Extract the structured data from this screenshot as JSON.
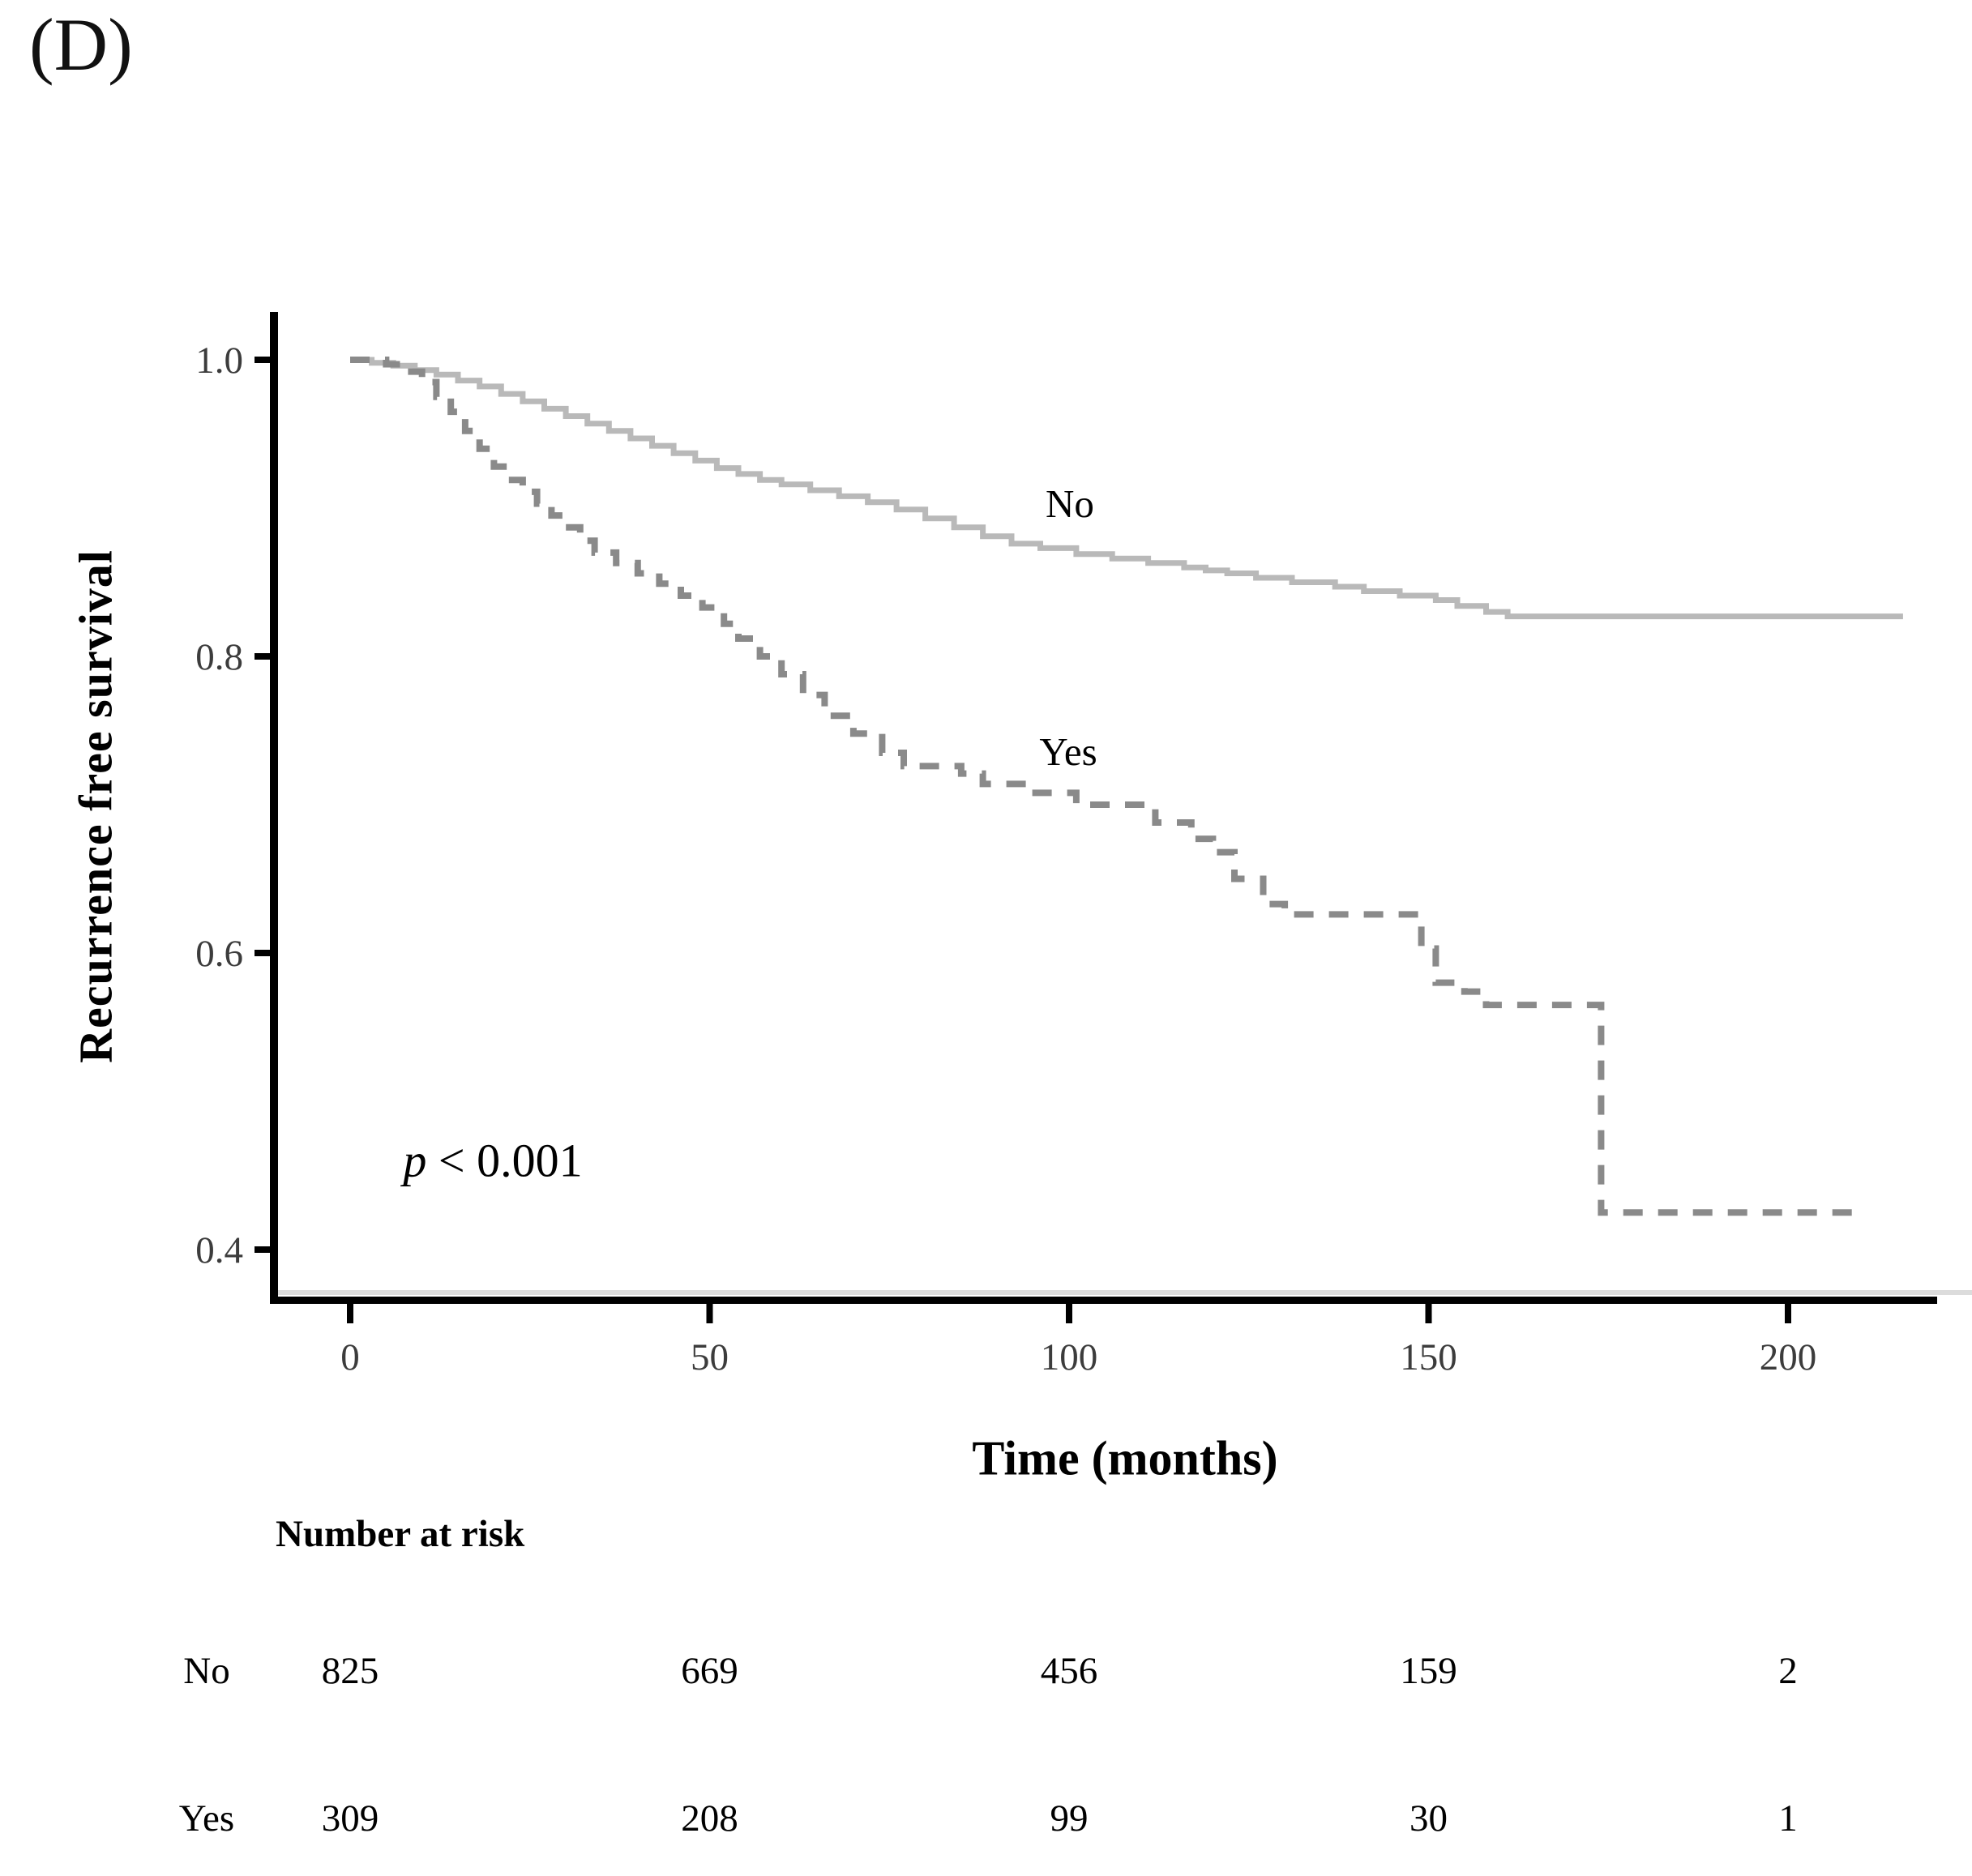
{
  "panel": {
    "label": "(D)"
  },
  "annotations": {
    "p_value_symbol": "p",
    "p_value_rest": " < 0.001"
  },
  "chart_data": {
    "type": "line",
    "subtype": "kaplan-meier-step",
    "title": "",
    "xlabel": "Time (months)",
    "ylabel": "Recurrence free survival",
    "x_ticks": [
      0,
      50,
      100,
      150,
      200
    ],
    "y_ticks": [
      1.0,
      0.8,
      0.6,
      0.4
    ],
    "y_tick_labels": [
      "1.0",
      "0.8",
      "0.6",
      "0.4"
    ],
    "xlim": [
      0,
      221
    ],
    "ylim": [
      0.36,
      1.03
    ],
    "grid": false,
    "legend_position": "inline-curve-labels",
    "p_value": "p < 0.001",
    "series": [
      {
        "name": "No",
        "line_style": "solid",
        "color": "#b9b9b9",
        "points": [
          [
            0,
            1.0
          ],
          [
            3,
            0.998
          ],
          [
            6,
            0.996
          ],
          [
            9,
            0.993
          ],
          [
            12,
            0.99
          ],
          [
            15,
            0.986
          ],
          [
            18,
            0.982
          ],
          [
            21,
            0.977
          ],
          [
            24,
            0.972
          ],
          [
            27,
            0.967
          ],
          [
            30,
            0.962
          ],
          [
            33,
            0.957
          ],
          [
            36,
            0.952
          ],
          [
            39,
            0.947
          ],
          [
            42,
            0.942
          ],
          [
            45,
            0.937
          ],
          [
            48,
            0.932
          ],
          [
            51,
            0.927
          ],
          [
            54,
            0.923
          ],
          [
            57,
            0.919
          ],
          [
            60,
            0.916
          ],
          [
            64,
            0.912
          ],
          [
            68,
            0.908
          ],
          [
            72,
            0.904
          ],
          [
            76,
            0.899
          ],
          [
            80,
            0.893
          ],
          [
            84,
            0.887
          ],
          [
            88,
            0.881
          ],
          [
            92,
            0.876
          ],
          [
            96,
            0.873
          ],
          [
            101,
            0.869
          ],
          [
            106,
            0.866
          ],
          [
            111,
            0.863
          ],
          [
            116,
            0.86
          ],
          [
            119,
            0.858
          ],
          [
            122,
            0.856
          ],
          [
            126,
            0.853
          ],
          [
            131,
            0.85
          ],
          [
            137,
            0.847
          ],
          [
            141,
            0.844
          ],
          [
            146,
            0.841
          ],
          [
            151,
            0.838
          ],
          [
            154,
            0.834
          ],
          [
            158,
            0.83
          ],
          [
            161,
            0.827
          ]
        ],
        "tail_end_t": 216
      },
      {
        "name": "Yes",
        "line_style": "dashed",
        "color": "#8a8a8a",
        "points": [
          [
            0,
            1.0
          ],
          [
            5,
            0.997
          ],
          [
            8,
            0.992
          ],
          [
            10,
            0.985
          ],
          [
            12,
            0.975
          ],
          [
            14,
            0.965
          ],
          [
            16,
            0.952
          ],
          [
            18,
            0.94
          ],
          [
            20,
            0.928
          ],
          [
            22,
            0.919
          ],
          [
            24,
            0.911
          ],
          [
            26,
            0.903
          ],
          [
            28,
            0.895
          ],
          [
            30,
            0.887
          ],
          [
            32,
            0.878
          ],
          [
            34,
            0.87
          ],
          [
            37,
            0.863
          ],
          [
            40,
            0.856
          ],
          [
            43,
            0.849
          ],
          [
            46,
            0.841
          ],
          [
            49,
            0.833
          ],
          [
            52,
            0.822
          ],
          [
            54,
            0.812
          ],
          [
            57,
            0.8
          ],
          [
            60,
            0.788
          ],
          [
            63,
            0.774
          ],
          [
            66,
            0.76
          ],
          [
            70,
            0.748
          ],
          [
            74,
            0.735
          ],
          [
            77,
            0.726
          ],
          [
            85,
            0.721
          ],
          [
            88,
            0.714
          ],
          [
            94,
            0.708
          ],
          [
            101,
            0.7
          ],
          [
            112,
            0.688
          ],
          [
            117,
            0.677
          ],
          [
            120,
            0.668
          ],
          [
            123,
            0.65
          ],
          [
            127,
            0.633
          ],
          [
            130,
            0.626
          ],
          [
            149,
            0.603
          ],
          [
            151,
            0.58
          ],
          [
            155,
            0.574
          ],
          [
            158,
            0.565
          ],
          [
            174,
            0.425
          ]
        ],
        "tail_end_t": 211
      }
    ]
  },
  "risk_table": {
    "title": "Number at risk",
    "time_points": [
      0,
      50,
      100,
      150,
      200
    ],
    "rows": [
      {
        "label": "No",
        "values": [
          "825",
          "669",
          "456",
          "159",
          "2"
        ]
      },
      {
        "label": "Yes",
        "values": [
          "309",
          "208",
          "99",
          "30",
          "1"
        ]
      }
    ]
  }
}
